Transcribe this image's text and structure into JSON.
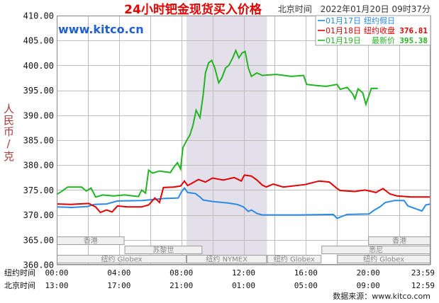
{
  "header": {
    "timezone_label": "北京时间",
    "datetime": "2022年01月20日 09时37分"
  },
  "watermark": "www.kitco.cn",
  "footer": "数据来源：www.kitco.com",
  "colors": {
    "title": "#e40000",
    "watermark": "#1f5fd0",
    "ylabel": "#a83c3c",
    "highlight": "#e4e0ea",
    "grid": "#bdbdbd",
    "session_fill": "#f0f0f0",
    "session_border": "#9c9c9c",
    "session_text": "#8a8a8a"
  },
  "chart_data": {
    "type": "line",
    "title": "24小时钯金现货买入价格",
    "ylabel": "人民币/克",
    "xlim": [
      0,
      24
    ],
    "ylim": [
      360,
      410
    ],
    "grid": true,
    "legend_placement": "top-right",
    "y_ticks": [
      "410.00",
      "405.00",
      "400.00",
      "395.00",
      "390.00",
      "385.00",
      "380.00",
      "375.00",
      "370.00",
      "365.00",
      "360.00"
    ],
    "x_tick_hours": [
      0,
      4,
      8,
      12,
      16,
      20,
      23.983
    ],
    "x_axes": [
      {
        "label": "纽约时间",
        "ticks": [
          "00:00",
          "04:00",
          "08:00",
          "12:00",
          "16:00",
          "20:00",
          "23:59"
        ]
      },
      {
        "label": "北京时间",
        "ticks": [
          "13:00",
          "17:00",
          "21:00",
          "01:00",
          "05:00",
          "09:00",
          "12:59"
        ]
      }
    ],
    "highlight_hours": [
      8.333,
      13.5
    ],
    "market_sessions": [
      [
        {
          "label": "香港",
          "start": 0,
          "end": 4.35
        },
        {
          "label": "香港",
          "start": 20,
          "end": 24
        }
      ],
      [
        {
          "label": "苏黎世",
          "start": 4.35,
          "end": 9.35
        },
        {
          "label": "悉尼",
          "start": 17,
          "end": 24
        }
      ],
      [
        {
          "label": "纽约 Globex",
          "start": 0,
          "end": 8.333
        },
        {
          "label": "纽约 NYMEX",
          "start": 8.333,
          "end": 13.5
        },
        {
          "label": "纽约 Globex",
          "start": 13.5,
          "end": 17
        },
        {
          "label": "纽约 Globex",
          "start": 18,
          "end": 24
        }
      ]
    ],
    "series": [
      {
        "name": "01月17日",
        "status": "纽约假日",
        "color": "#2a8ae6",
        "points": [
          [
            0,
            371.6
          ],
          [
            1.0,
            371.5
          ],
          [
            2.0,
            371.7
          ],
          [
            2.4,
            372.1
          ],
          [
            3.2,
            372.2
          ],
          [
            3.9,
            372.8
          ],
          [
            5.5,
            372.9
          ],
          [
            6.9,
            373.3
          ],
          [
            7.8,
            373.4
          ],
          [
            8.0,
            374.6
          ],
          [
            8.2,
            375.4
          ],
          [
            8.4,
            374.5
          ],
          [
            8.9,
            374.3
          ],
          [
            9.2,
            373.6
          ],
          [
            9.4,
            373.0
          ],
          [
            10.0,
            372.7
          ],
          [
            11.0,
            372.4
          ],
          [
            11.6,
            372.1
          ],
          [
            12.0,
            371.6
          ],
          [
            12.3,
            370.7
          ],
          [
            12.5,
            371.0
          ],
          [
            12.85,
            370.3
          ],
          [
            13.2,
            370.0
          ],
          [
            15.5,
            370.0
          ],
          [
            17.75,
            370.1
          ],
          [
            18.0,
            369.3
          ],
          [
            18.4,
            369.8
          ],
          [
            18.65,
            370.1
          ],
          [
            20.05,
            370.2
          ],
          [
            20.4,
            371.0
          ],
          [
            20.75,
            371.6
          ],
          [
            21.1,
            372.5
          ],
          [
            21.7,
            372.9
          ],
          [
            22.3,
            372.9
          ],
          [
            22.55,
            371.8
          ],
          [
            23.0,
            371.3
          ],
          [
            23.45,
            370.8
          ],
          [
            23.7,
            372.0
          ],
          [
            24.0,
            372.2
          ]
        ]
      },
      {
        "name": "01月18日",
        "status": "纽约收盘",
        "value": "376.81",
        "color": "#e40000",
        "points": [
          [
            0,
            372.2
          ],
          [
            0.9,
            372.1
          ],
          [
            2.05,
            372.3
          ],
          [
            2.5,
            371.6
          ],
          [
            2.8,
            370.5
          ],
          [
            3.2,
            371.0
          ],
          [
            3.55,
            370.6
          ],
          [
            3.9,
            371.8
          ],
          [
            4.55,
            371.6
          ],
          [
            5.45,
            371.6
          ],
          [
            5.9,
            372.0
          ],
          [
            6.3,
            373.4
          ],
          [
            6.6,
            372.5
          ],
          [
            6.85,
            375.5
          ],
          [
            7.5,
            375.6
          ],
          [
            7.95,
            375.8
          ],
          [
            8.2,
            376.8
          ],
          [
            8.4,
            375.9
          ],
          [
            8.65,
            376.3
          ],
          [
            9.1,
            377.1
          ],
          [
            9.55,
            376.6
          ],
          [
            10.0,
            377.4
          ],
          [
            10.7,
            377.0
          ],
          [
            11.4,
            377.5
          ],
          [
            11.85,
            376.8
          ],
          [
            12.05,
            378.0
          ],
          [
            12.5,
            377.8
          ],
          [
            12.85,
            377.0
          ],
          [
            13.2,
            376.0
          ],
          [
            13.45,
            375.6
          ],
          [
            13.9,
            376.2
          ],
          [
            14.55,
            375.6
          ],
          [
            15.95,
            376.1
          ],
          [
            16.85,
            376.8
          ],
          [
            17.5,
            376.6
          ],
          [
            18.0,
            375.3
          ],
          [
            18.2,
            374.9
          ],
          [
            19.15,
            374.7
          ],
          [
            19.8,
            375.0
          ],
          [
            20.5,
            374.5
          ],
          [
            20.95,
            375.3
          ],
          [
            21.4,
            374.2
          ],
          [
            21.85,
            373.8
          ],
          [
            22.75,
            373.6
          ],
          [
            24.0,
            373.6
          ]
        ]
      },
      {
        "name": "01月19日",
        "status": "最新价",
        "value": "395.38",
        "color": "#22b422",
        "points": [
          [
            0,
            374.1
          ],
          [
            0.35,
            374.8
          ],
          [
            0.7,
            375.6
          ],
          [
            1.6,
            375.6
          ],
          [
            1.9,
            374.8
          ],
          [
            2.2,
            375.4
          ],
          [
            2.5,
            373.6
          ],
          [
            2.95,
            374.0
          ],
          [
            3.65,
            373.8
          ],
          [
            4.35,
            374.0
          ],
          [
            5.25,
            373.7
          ],
          [
            5.45,
            375.0
          ],
          [
            5.7,
            374.4
          ],
          [
            5.9,
            379.0
          ],
          [
            6.15,
            378.4
          ],
          [
            6.6,
            378.8
          ],
          [
            7.3,
            378.5
          ],
          [
            7.5,
            379.5
          ],
          [
            7.75,
            380.5
          ],
          [
            7.95,
            379.2
          ],
          [
            8.1,
            383.5
          ],
          [
            8.35,
            385.0
          ],
          [
            8.55,
            386.0
          ],
          [
            8.75,
            388.0
          ],
          [
            8.95,
            391.0
          ],
          [
            9.2,
            389.5
          ],
          [
            9.4,
            394.0
          ],
          [
            9.55,
            398.5
          ],
          [
            9.75,
            400.5
          ],
          [
            9.95,
            401.0
          ],
          [
            10.15,
            399.5
          ],
          [
            10.4,
            396.5
          ],
          [
            10.6,
            397.5
          ],
          [
            10.85,
            399.5
          ],
          [
            11.05,
            400.0
          ],
          [
            11.3,
            401.5
          ],
          [
            11.5,
            403.0
          ],
          [
            11.7,
            401.5
          ],
          [
            11.9,
            402.5
          ],
          [
            12.1,
            402.8
          ],
          [
            12.3,
            399.5
          ],
          [
            12.5,
            397.8
          ],
          [
            12.85,
            398.5
          ],
          [
            13.2,
            398.0
          ],
          [
            14.1,
            398.2
          ],
          [
            15.05,
            397.8
          ],
          [
            15.85,
            398.0
          ],
          [
            16.05,
            396.2
          ],
          [
            16.6,
            396.0
          ],
          [
            17.3,
            395.8
          ],
          [
            18.0,
            396.2
          ],
          [
            18.2,
            395.2
          ],
          [
            18.65,
            395.6
          ],
          [
            19.0,
            394.3
          ],
          [
            19.15,
            393.3
          ],
          [
            19.35,
            395.3
          ],
          [
            19.65,
            394.5
          ],
          [
            19.85,
            392.2
          ],
          [
            20.05,
            394.0
          ],
          [
            20.2,
            395.4
          ],
          [
            20.62,
            395.38
          ]
        ]
      }
    ]
  }
}
